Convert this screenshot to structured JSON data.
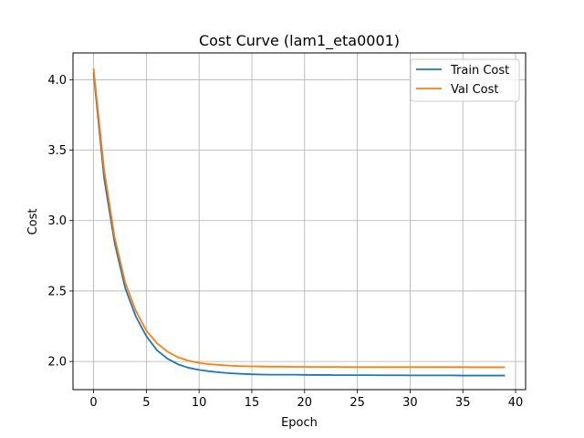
{
  "chart_data": {
    "type": "line",
    "title": "Cost Curve (lam1_eta0001)",
    "xlabel": "Epoch",
    "ylabel": "Cost",
    "xlim": [
      -1.95,
      40.95
    ],
    "ylim": [
      1.8,
      4.19
    ],
    "xticks": [
      0,
      5,
      10,
      15,
      20,
      25,
      30,
      35,
      40
    ],
    "yticks": [
      2.0,
      2.5,
      3.0,
      3.5,
      4.0
    ],
    "grid": true,
    "legend_position": "top-right",
    "x": [
      0,
      1,
      2,
      3,
      4,
      5,
      6,
      7,
      8,
      9,
      10,
      11,
      12,
      13,
      14,
      15,
      16,
      17,
      18,
      19,
      20,
      21,
      22,
      23,
      24,
      25,
      26,
      27,
      28,
      29,
      30,
      31,
      32,
      33,
      34,
      35,
      36,
      37,
      38,
      39
    ],
    "series": [
      {
        "name": "Train Cost",
        "color": "#1f77b4",
        "values": [
          4.05,
          3.3,
          2.84,
          2.52,
          2.32,
          2.18,
          2.08,
          2.02,
          1.98,
          1.955,
          1.94,
          1.93,
          1.922,
          1.916,
          1.912,
          1.909,
          1.907,
          1.906,
          1.906,
          1.906,
          1.905,
          1.904,
          1.904,
          1.903,
          1.903,
          1.903,
          1.903,
          1.902,
          1.902,
          1.902,
          1.901,
          1.901,
          1.901,
          1.901,
          1.901,
          1.9,
          1.9,
          1.9,
          1.9,
          1.9
        ]
      },
      {
        "name": "Val Cost",
        "color": "#ff7f0e",
        "values": [
          4.08,
          3.36,
          2.88,
          2.56,
          2.36,
          2.22,
          2.13,
          2.07,
          2.03,
          2.005,
          1.99,
          1.98,
          1.975,
          1.97,
          1.967,
          1.965,
          1.964,
          1.963,
          1.963,
          1.962,
          1.962,
          1.961,
          1.961,
          1.961,
          1.96,
          1.96,
          1.96,
          1.96,
          1.96,
          1.96,
          1.96,
          1.96,
          1.96,
          1.96,
          1.96,
          1.96,
          1.959,
          1.959,
          1.959,
          1.959
        ]
      }
    ]
  }
}
